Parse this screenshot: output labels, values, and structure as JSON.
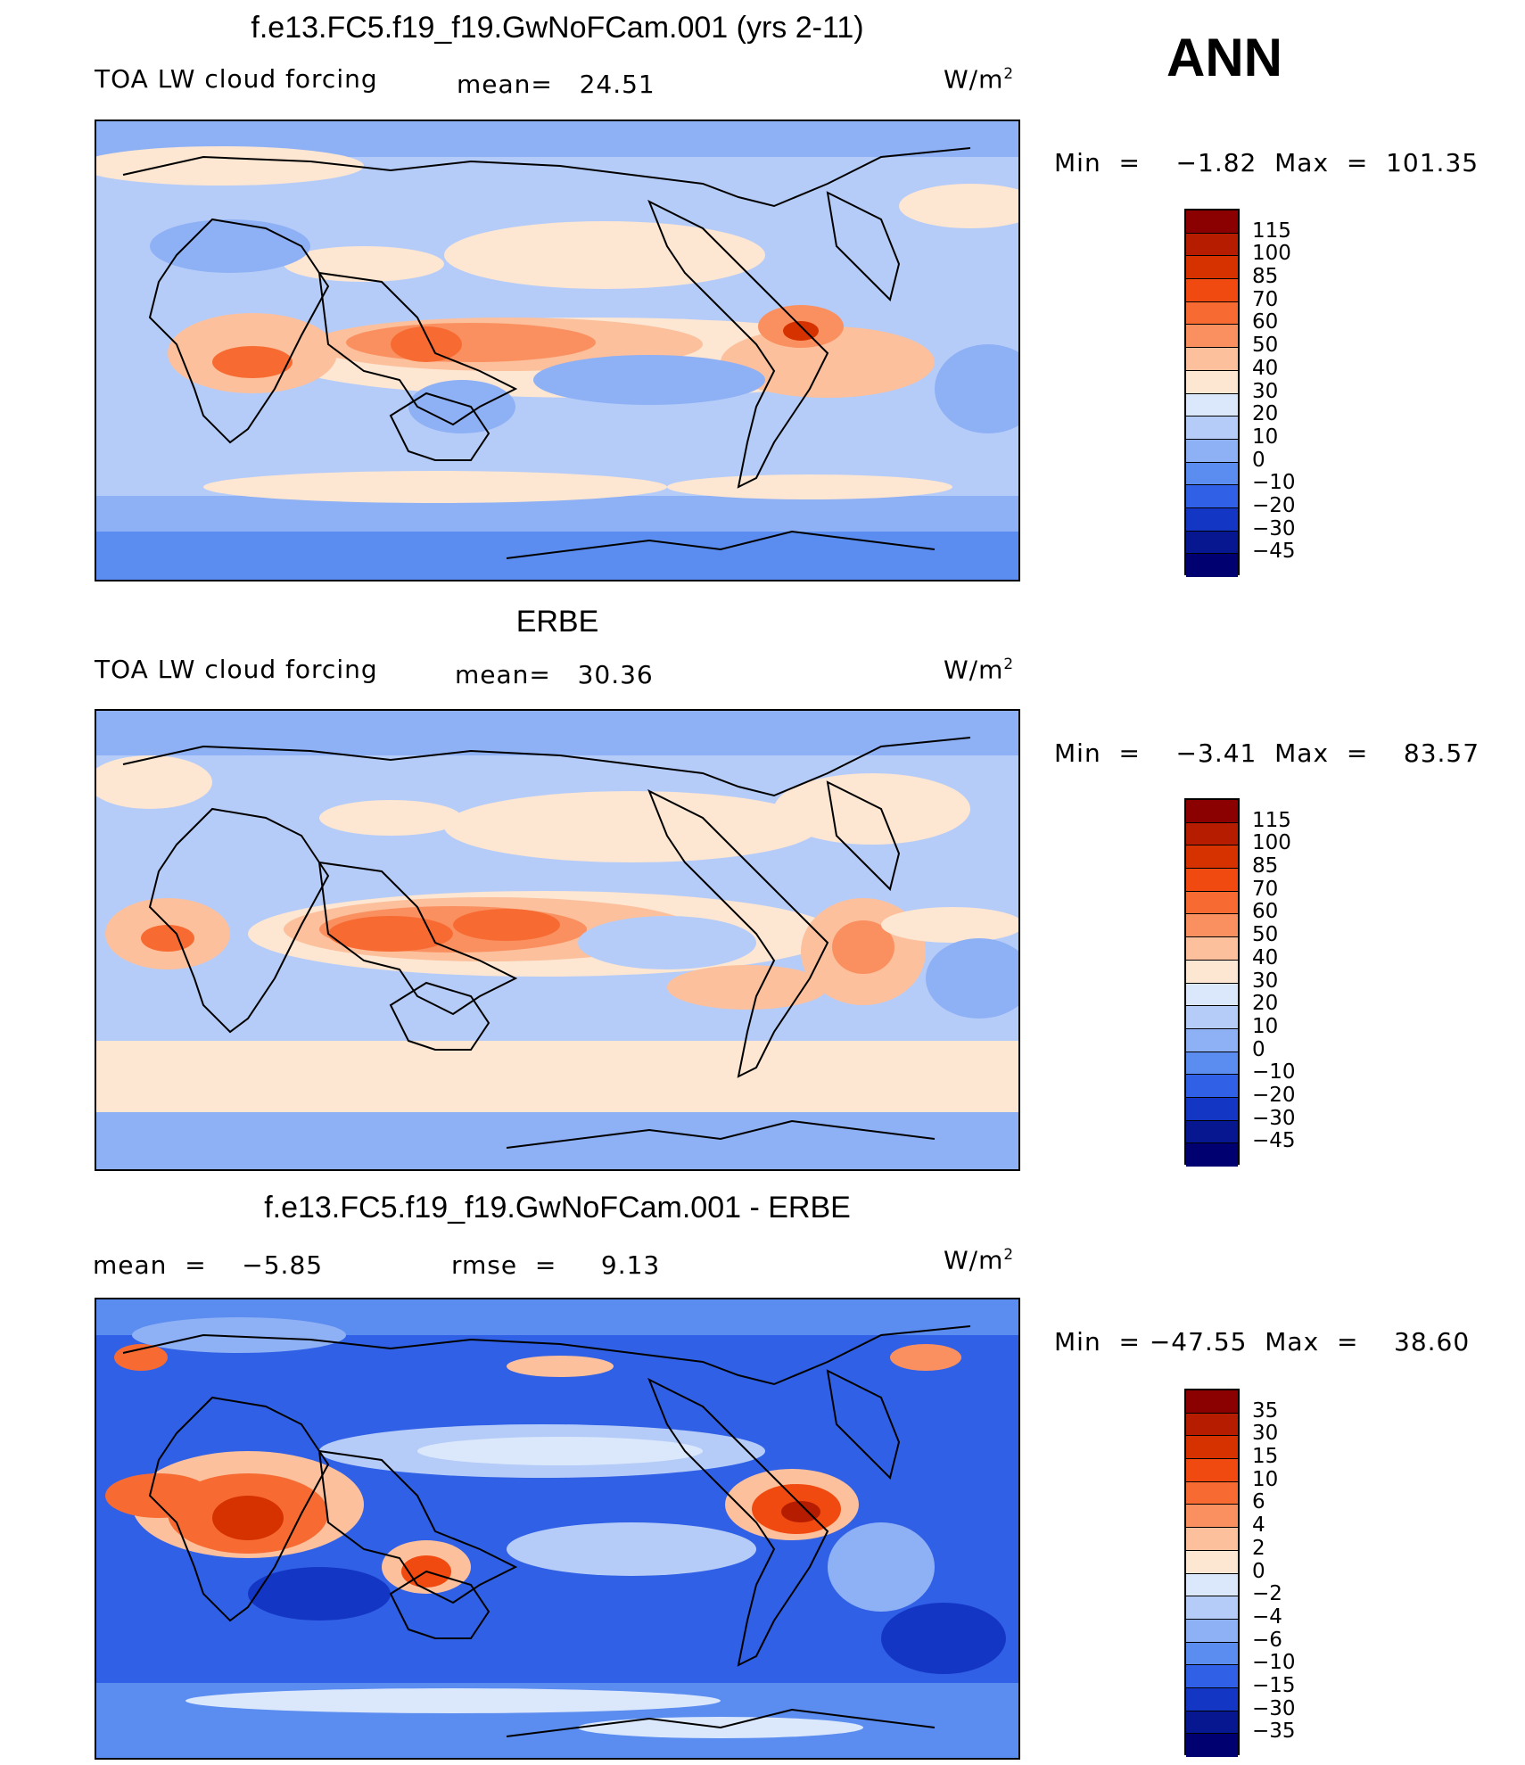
{
  "header": {
    "season": "ANN"
  },
  "panels": [
    {
      "title": "f.e13.FC5.f19_f19.GwNoFCam.001 (yrs 2-11)",
      "left_label": "TOA LW cloud forcing",
      "center_label": "mean=   24.51",
      "units": "W/m",
      "units_sup": "2",
      "minmax": "Min  =    −1.82  Max  =  101.35",
      "levels": [
        "115",
        "100",
        "85",
        "70",
        "60",
        "50",
        "40",
        "30",
        "20",
        "10",
        "0",
        "−10",
        "−20",
        "−30",
        "−45"
      ],
      "colors": [
        "#8b0000",
        "#b51c00",
        "#d63200",
        "#f04a10",
        "#f76b33",
        "#fa9060",
        "#fcc09c",
        "#fde6d2",
        "#dbe8fc",
        "#b6ccf8",
        "#8eb0f5",
        "#5b8cf0",
        "#3060e6",
        "#1436c4",
        "#06178f",
        "#000070"
      ]
    },
    {
      "title": "ERBE",
      "left_label": "TOA LW cloud forcing",
      "center_label": "mean=   30.36",
      "units": "W/m",
      "units_sup": "2",
      "minmax": "Min  =    −3.41  Max  =    83.57",
      "levels": [
        "115",
        "100",
        "85",
        "70",
        "60",
        "50",
        "40",
        "30",
        "20",
        "10",
        "0",
        "−10",
        "−20",
        "−30",
        "−45"
      ],
      "colors": [
        "#8b0000",
        "#b51c00",
        "#d63200",
        "#f04a10",
        "#f76b33",
        "#fa9060",
        "#fcc09c",
        "#fde6d2",
        "#dbe8fc",
        "#b6ccf8",
        "#8eb0f5",
        "#5b8cf0",
        "#3060e6",
        "#1436c4",
        "#06178f",
        "#000070"
      ]
    },
    {
      "title": "f.e13.FC5.f19_f19.GwNoFCam.001 - ERBE",
      "left_label": "mean  =    −5.85",
      "center_label": "rmse  =     9.13",
      "units": "W/m",
      "units_sup": "2",
      "minmax": "Min  = −47.55  Max  =    38.60",
      "levels": [
        "35",
        "30",
        "15",
        "10",
        "6",
        "4",
        "2",
        "0",
        "−2",
        "−4",
        "−6",
        "−10",
        "−15",
        "−30",
        "−35"
      ],
      "colors": [
        "#8b0000",
        "#b51c00",
        "#d63200",
        "#f04a10",
        "#f76b33",
        "#fa9060",
        "#fcc09c",
        "#fde6d2",
        "#dbe8fc",
        "#b6ccf8",
        "#8eb0f5",
        "#5b8cf0",
        "#3060e6",
        "#1436c4",
        "#06178f",
        "#000070"
      ]
    }
  ]
}
